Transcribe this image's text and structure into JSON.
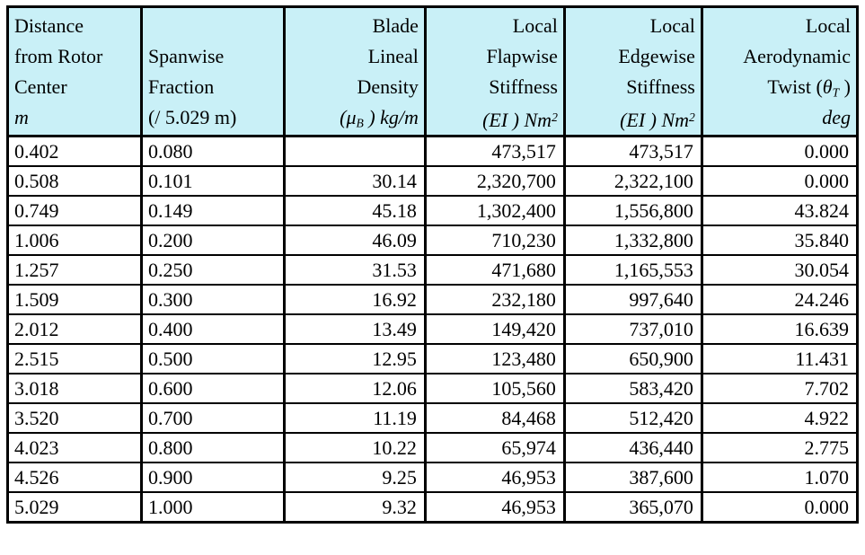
{
  "colors": {
    "header_bg": "#c9f0f7",
    "border": "#000000",
    "row_bg": "#ffffff"
  },
  "chart_data": {
    "type": "table",
    "columns": [
      {
        "l1": "Distance",
        "l2": "from Rotor",
        "l3": "Center",
        "unit": "m"
      },
      {
        "l1": "",
        "l2": "Spanwise",
        "l3": "Fraction",
        "unit": "(/ 5.029 m)"
      },
      {
        "l1": "Blade",
        "l2": "Lineal",
        "l3": "Density",
        "unit_pre": "(μ",
        "unit_sub": "B",
        "unit_post": " ) kg/m"
      },
      {
        "l1": "Local",
        "l2": "Flapwise",
        "l3": "Stiffness",
        "unit_pre": "(EI ) Nm",
        "unit_sup": "2"
      },
      {
        "l1": "Local",
        "l2": "Edgewise",
        "l3": "Stiffness",
        "unit_pre": "(EI ) Nm",
        "unit_sup": "2"
      },
      {
        "l1": "Local",
        "l2": "Aerodynamic",
        "l3_pre": "Twist (",
        "l3_sym": "θ",
        "l3_sub": "T",
        "l3_post": " )",
        "unit": "deg"
      }
    ],
    "rows": [
      [
        "0.402",
        "0.080",
        "",
        "473,517",
        "473,517",
        "0.000"
      ],
      [
        "0.508",
        "0.101",
        "30.14",
        "2,320,700",
        "2,322,100",
        "0.000"
      ],
      [
        "0.749",
        "0.149",
        "45.18",
        "1,302,400",
        "1,556,800",
        "43.824"
      ],
      [
        "1.006",
        "0.200",
        "46.09",
        "710,230",
        "1,332,800",
        "35.840"
      ],
      [
        "1.257",
        "0.250",
        "31.53",
        "471,680",
        "1,165,553",
        "30.054"
      ],
      [
        "1.509",
        "0.300",
        "16.92",
        "232,180",
        "997,640",
        "24.246"
      ],
      [
        "2.012",
        "0.400",
        "13.49",
        "149,420",
        "737,010",
        "16.639"
      ],
      [
        "2.515",
        "0.500",
        "12.95",
        "123,480",
        "650,900",
        "11.431"
      ],
      [
        "3.018",
        "0.600",
        "12.06",
        "105,560",
        "583,420",
        "7.702"
      ],
      [
        "3.520",
        "0.700",
        "11.19",
        "84,468",
        "512,420",
        "4.922"
      ],
      [
        "4.023",
        "0.800",
        "10.22",
        "65,974",
        "436,440",
        "2.775"
      ],
      [
        "4.526",
        "0.900",
        "9.25",
        "46,953",
        "387,600",
        "1.070"
      ],
      [
        "5.029",
        "1.000",
        "9.32",
        "46,953",
        "365,070",
        "0.000"
      ]
    ]
  }
}
